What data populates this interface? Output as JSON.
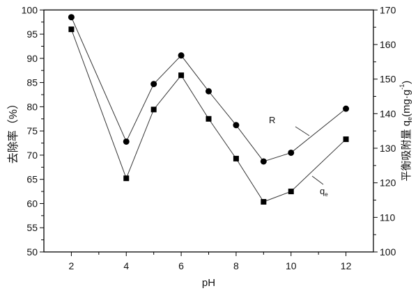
{
  "chart_data": {
    "type": "line",
    "title": "",
    "xlabel": "pH",
    "ylabel_left": "去除率（%）",
    "ylabel_right": {
      "main": "平衡吸附量 q",
      "sub": "e",
      "unit": "(mg·g",
      "sup": "-1",
      "close": ")"
    },
    "xlim": [
      1,
      13
    ],
    "ylim_left": [
      50,
      100
    ],
    "ylim_right": [
      100,
      170
    ],
    "x_ticks": [
      2,
      4,
      6,
      8,
      10,
      12
    ],
    "y_ticks_left": [
      50,
      55,
      60,
      65,
      70,
      75,
      80,
      85,
      90,
      95,
      100
    ],
    "y_ticks_right": [
      100,
      110,
      120,
      130,
      140,
      150,
      160,
      170
    ],
    "grid": false,
    "x": [
      2,
      4,
      5,
      6,
      7,
      8,
      9,
      10,
      12
    ],
    "series": [
      {
        "name": "R",
        "axis": "left",
        "marker": "circle",
        "values": [
          98.5,
          72.8,
          84.7,
          90.6,
          83.2,
          76.2,
          68.7,
          70.5,
          79.6
        ]
      },
      {
        "name": "q",
        "name_sub": "e",
        "axis": "right",
        "marker": "square",
        "values": [
          164.4,
          121.3,
          141.2,
          151.1,
          138.5,
          127.0,
          114.5,
          117.5,
          132.6
        ]
      }
    ],
    "colors": {
      "line": "#333333",
      "marker": "#000000"
    }
  }
}
